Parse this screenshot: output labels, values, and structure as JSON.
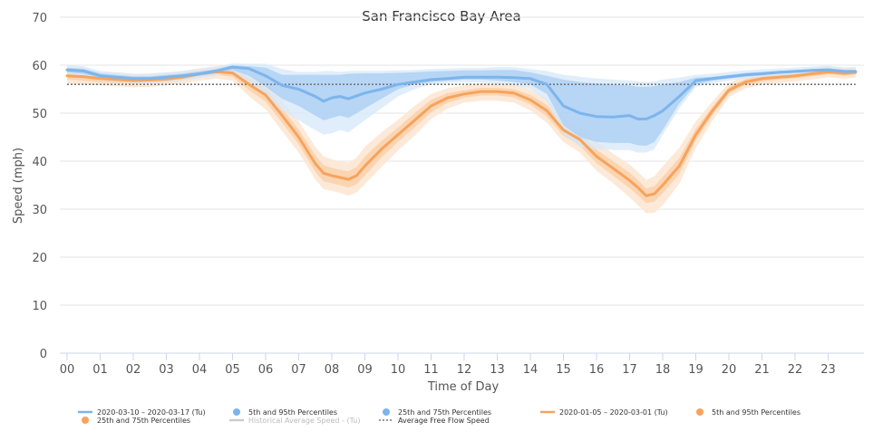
{
  "chart_data": {
    "type": "line",
    "title": "San Francisco Bay Area",
    "xlabel": "Time of Day",
    "ylabel": "Speed (mph)",
    "xlim": [
      0,
      23.83
    ],
    "ylim": [
      0,
      70
    ],
    "yticks": [
      0,
      10,
      20,
      30,
      40,
      50,
      60,
      70
    ],
    "xticks": [
      "00",
      "01",
      "02",
      "03",
      "04",
      "05",
      "06",
      "07",
      "08",
      "09",
      "10",
      "11",
      "12",
      "13",
      "14",
      "15",
      "16",
      "17",
      "18",
      "19",
      "20",
      "21",
      "22",
      "23"
    ],
    "grid": "horizontal",
    "legend_position": "bottom",
    "free_flow_speed": 56,
    "colors": {
      "blue_line": "#7cb5ec",
      "blue_band_outer": "#d6e8fa",
      "blue_band_inner": "#afd0f3",
      "orange_line": "#f7a35c",
      "orange_band_outer": "#fde7d3",
      "orange_band_inner": "#fbd2ad",
      "free_flow": "#777777",
      "historical": "#cccccc"
    },
    "series": [
      {
        "name": "2020-03-10 – 2020-03-17 (Tu)",
        "color": "#7cb5ec",
        "x": [
          0,
          0.5,
          1,
          1.5,
          2,
          2.5,
          3,
          3.5,
          4,
          4.5,
          5,
          5.5,
          6,
          6.5,
          7,
          7.5,
          7.75,
          8,
          8.25,
          8.5,
          9,
          9.5,
          10,
          10.5,
          11,
          11.5,
          12,
          12.5,
          13,
          13.5,
          14,
          14.5,
          15,
          15.5,
          16,
          16.5,
          17,
          17.25,
          17.5,
          17.75,
          18,
          18.5,
          19,
          19.5,
          20,
          20.5,
          21,
          21.5,
          22,
          22.5,
          23,
          23.5,
          23.83
        ],
        "y": [
          59,
          58.8,
          57.8,
          57.5,
          57.2,
          57.2,
          57.5,
          57.8,
          58.2,
          58.8,
          59.6,
          59.3,
          57.8,
          55.8,
          55,
          53.5,
          52.5,
          53.2,
          53.5,
          53,
          54.2,
          55,
          56,
          56.5,
          57,
          57.2,
          57.5,
          57.5,
          57.5,
          57.4,
          57.2,
          56,
          51.5,
          50,
          49.3,
          49.2,
          49.5,
          48.8,
          48.8,
          49.5,
          50.5,
          53.5,
          56.8,
          57.2,
          57.6,
          58,
          58.2,
          58.5,
          58.7,
          58.9,
          59,
          58.7,
          58.7
        ],
        "p25": [
          58.5,
          58.2,
          57.3,
          57,
          56.8,
          56.8,
          57,
          57.3,
          57.8,
          58.3,
          59,
          57.8,
          55.5,
          53,
          51.5,
          49.5,
          48.5,
          49,
          49.5,
          49,
          51,
          53,
          55,
          56,
          56.5,
          56.8,
          57,
          57,
          56.8,
          56.5,
          56,
          54,
          47.5,
          45,
          44,
          43.8,
          43.8,
          43.3,
          43.2,
          44,
          46.5,
          52,
          56,
          56.8,
          57.2,
          57.6,
          57.9,
          58.2,
          58.4,
          58.6,
          58.7,
          58.4,
          58.4
        ],
        "p75": [
          59.5,
          59.3,
          58.3,
          58,
          57.7,
          57.7,
          58,
          58.3,
          58.7,
          59.2,
          60,
          59.8,
          59.5,
          58,
          58,
          58,
          58,
          58,
          58,
          58.2,
          58.3,
          58.3,
          58.4,
          58.5,
          58.7,
          58.8,
          58.9,
          58.9,
          59,
          59,
          58.5,
          57.8,
          57,
          56.5,
          56.2,
          56,
          55.8,
          55.5,
          55.5,
          55.6,
          56,
          56.5,
          57.4,
          57.6,
          58,
          58.4,
          58.6,
          58.8,
          59,
          59.2,
          59.4,
          59,
          59
        ],
        "p5": [
          58,
          57.6,
          56.8,
          56.5,
          56.2,
          56.2,
          56.5,
          56.8,
          57.3,
          57.8,
          58.5,
          56.5,
          53.5,
          50.5,
          48.5,
          46.5,
          45.5,
          45.8,
          46.5,
          46,
          48.5,
          51,
          53.5,
          55,
          56,
          56.3,
          56.5,
          56.4,
          56.2,
          55.8,
          55,
          52.5,
          45.5,
          43,
          42.5,
          42.3,
          42.3,
          41.8,
          41.8,
          42.5,
          45.5,
          51,
          55.5,
          56.3,
          56.8,
          57.2,
          57.6,
          57.9,
          58.1,
          58.3,
          58.4,
          58.1,
          58.1
        ],
        "p95": [
          60,
          59.8,
          58.8,
          58.5,
          58.2,
          58.2,
          58.5,
          58.8,
          59.2,
          59.7,
          60.4,
          60.3,
          60.3,
          59.2,
          58.6,
          58.6,
          58.8,
          58.8,
          58.6,
          58.8,
          58.8,
          58.8,
          58.9,
          59,
          59.2,
          59.3,
          59.4,
          59.4,
          59.6,
          59.6,
          59.2,
          58.8,
          58,
          57.6,
          57.2,
          57,
          56.8,
          56.6,
          56.5,
          56.6,
          57,
          57.4,
          58,
          58.2,
          58.6,
          58.9,
          59.1,
          59.3,
          59.5,
          59.7,
          59.9,
          59.5,
          59.5
        ]
      },
      {
        "name": "2020-01-05 – 2020-03-01 (Tu)",
        "color": "#f7a35c",
        "x": [
          0,
          0.5,
          1,
          1.5,
          2,
          2.5,
          3,
          3.5,
          4,
          4.5,
          5,
          5.5,
          6,
          6.5,
          7,
          7.5,
          7.75,
          8,
          8.25,
          8.5,
          8.75,
          9,
          9.5,
          10,
          10.5,
          11,
          11.5,
          12,
          12.5,
          13,
          13.5,
          14,
          14.5,
          15,
          15.5,
          16,
          16.5,
          17,
          17.25,
          17.5,
          17.75,
          18,
          18.5,
          19,
          19.5,
          20,
          20.5,
          21,
          21.5,
          22,
          22.5,
          23,
          23.5,
          23.83
        ],
        "y": [
          57.8,
          57.6,
          57.2,
          57,
          56.8,
          56.9,
          57.1,
          57.5,
          58.2,
          58.6,
          58.4,
          56,
          53.8,
          49.5,
          45,
          39.5,
          37.5,
          37,
          36.6,
          36.2,
          37,
          39,
          42.5,
          45.5,
          48.5,
          51.5,
          53.2,
          54,
          54.5,
          54.5,
          54.2,
          52.8,
          50.5,
          46.5,
          44.5,
          41,
          38.5,
          36,
          34.5,
          32.8,
          33.2,
          35,
          39,
          45.5,
          50.5,
          54.8,
          56.5,
          57.2,
          57.5,
          57.8,
          58.2,
          58.6,
          58.3,
          58.5
        ],
        "p25": [
          57,
          56.8,
          56.5,
          56.3,
          56.2,
          56.3,
          56.5,
          56.9,
          57.6,
          58,
          57.6,
          54.8,
          52.4,
          48,
          43.5,
          37.8,
          35.8,
          35.4,
          35,
          34.5,
          35.2,
          37,
          40.8,
          44,
          47,
          50.2,
          52.2,
          53.2,
          53.7,
          53.7,
          53.3,
          51.8,
          49.3,
          45.3,
          43.2,
          39.6,
          37,
          34.4,
          32.9,
          31.3,
          31.6,
          33.3,
          37.3,
          44.3,
          49.6,
          54.1,
          55.9,
          56.6,
          57,
          57.3,
          57.7,
          58.1,
          57.8,
          58
        ],
        "p75": [
          58.6,
          58.4,
          58,
          57.8,
          57.5,
          57.6,
          57.8,
          58.2,
          58.8,
          59.2,
          59.2,
          57.2,
          55.2,
          51,
          46.6,
          41.2,
          39.2,
          38.6,
          38.2,
          37.9,
          38.8,
          41,
          44.2,
          47,
          50,
          52.8,
          54.2,
          54.8,
          55.3,
          55.3,
          55,
          53.8,
          51.7,
          47.7,
          45.8,
          42.4,
          40,
          37.6,
          36.1,
          34.3,
          34.8,
          36.7,
          40.7,
          46.7,
          51.4,
          55.5,
          57.1,
          57.8,
          58,
          58.3,
          58.7,
          59.1,
          58.8,
          59
        ],
        "p5": [
          56.2,
          56,
          55.8,
          55.6,
          55.4,
          55.5,
          55.8,
          56.2,
          56.8,
          57.2,
          56.8,
          53.5,
          50.8,
          46.3,
          41.8,
          36.2,
          34.2,
          33.8,
          33.4,
          32.8,
          33.5,
          35.2,
          38.8,
          42.2,
          45.3,
          48.8,
          51,
          52.2,
          52.6,
          52.6,
          52.2,
          50.6,
          48,
          44,
          41.8,
          38,
          35.4,
          32.5,
          30.8,
          29.2,
          29.2,
          30.8,
          35.3,
          42.8,
          48.4,
          53.3,
          55.2,
          55.9,
          56.3,
          56.6,
          57,
          57.5,
          57.2,
          57.4
        ],
        "p95": [
          59.3,
          59.1,
          58.7,
          58.5,
          58.2,
          58.3,
          58.5,
          58.8,
          59.4,
          59.8,
          60,
          58.3,
          56.6,
          52.6,
          48.3,
          43,
          41,
          40.4,
          40,
          39.7,
          40.7,
          43,
          46,
          48.6,
          51.5,
          54,
          55.2,
          55.8,
          56.3,
          56.3,
          56,
          54.9,
          53,
          49,
          47.3,
          44,
          41.6,
          39.3,
          37.8,
          36.1,
          36.9,
          38.9,
          42.8,
          48.3,
          52.4,
          56.3,
          57.8,
          58.5,
          58.7,
          59,
          59.4,
          59.8,
          59.5,
          59.7
        ]
      }
    ],
    "legend": [
      {
        "kind": "line",
        "label": "2020-03-10 – 2020-03-17 (Tu)",
        "color": "#7cb5ec"
      },
      {
        "kind": "dot",
        "label": "5th and 95th Percentiles",
        "color": "#7cb5ec"
      },
      {
        "kind": "dot",
        "label": "25th and 75th Percentiles",
        "color": "#7cb5ec"
      },
      {
        "kind": "line",
        "label": "2020-01-05 – 2020-03-01 (Tu)",
        "color": "#f7a35c"
      },
      {
        "kind": "dot",
        "label": "5th and 95th Percentiles",
        "color": "#f7a35c"
      },
      {
        "kind": "dot",
        "label": "25th and 75th Percentiles",
        "color": "#f7a35c"
      },
      {
        "kind": "line",
        "label": "Historical Average Speed - (Tu)",
        "color": "#cccccc",
        "muted": true
      },
      {
        "kind": "dash",
        "label": "Average Free Flow Speed",
        "color": "#777777"
      }
    ]
  }
}
